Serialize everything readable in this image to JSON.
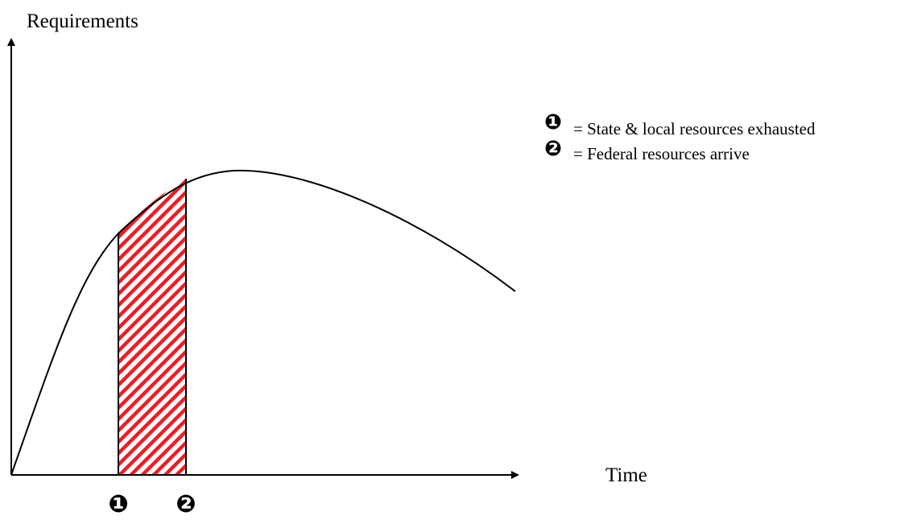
{
  "diagram": {
    "y_axis_label": "Requirements",
    "x_axis_label": "Time",
    "markers": [
      {
        "symbol": "❶",
        "meaning": "= State & local resources exhausted"
      },
      {
        "symbol": "❷",
        "meaning": "= Federal resources arrive"
      }
    ],
    "colors": {
      "hatch": "#ee1c24",
      "line": "#000000",
      "background": "#ffffff"
    }
  }
}
